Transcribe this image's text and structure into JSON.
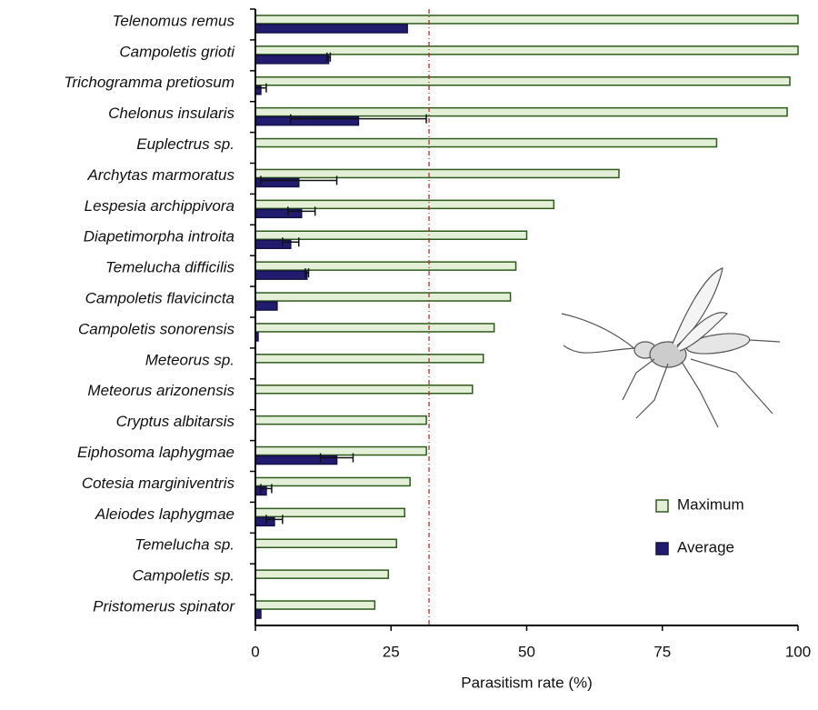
{
  "chart_data": {
    "type": "bar",
    "orientation": "horizontal",
    "x_label": "Parasitism rate (%)",
    "categories": [
      "Telenomus remus",
      "Campoletis grioti",
      "Trichogramma pretiosum",
      "Chelonus insularis",
      "Euplectrus sp.",
      "Archytas marmoratus",
      "Lespesia archippivora",
      "Diapetimorpha introita",
      "Temelucha difficilis",
      "Campoletis flavicincta",
      "Campoletis sonorensis",
      "Meteorus sp.",
      "Meteorus arizonensis",
      "Cryptus albitarsis",
      "Eiphosoma laphygmae",
      "Cotesia marginiventris",
      "Aleiodes laphygmae",
      "Temelucha sp.",
      "Campoletis sp.",
      "Pristomerus spinator"
    ],
    "series": [
      {
        "name": "Maximum",
        "color": "#e4efd8",
        "edge_color": "#2e5a1c",
        "values": [
          100,
          100,
          98.5,
          98,
          85,
          67,
          55,
          50,
          48,
          47,
          44,
          42,
          40,
          31.5,
          31.5,
          28.5,
          27.5,
          26,
          24.5,
          22
        ]
      },
      {
        "name": "Average",
        "color": "#221c6e",
        "edge_color": "#14104a",
        "values": [
          28,
          13.5,
          1,
          19,
          null,
          8,
          8.5,
          6.5,
          9.5,
          4,
          0.5,
          null,
          null,
          null,
          15,
          2,
          3.5,
          null,
          null,
          1
        ],
        "errors": [
          null,
          0.3,
          1,
          12.5,
          null,
          7,
          2.5,
          1.5,
          0.3,
          null,
          null,
          null,
          null,
          null,
          3,
          1,
          1.5,
          null,
          null,
          null
        ]
      }
    ],
    "reference_line": {
      "value": 32,
      "color": "#b22222"
    },
    "xlim": [
      0,
      100
    ],
    "xticks": [
      0,
      25,
      50,
      75,
      100
    ],
    "legend": "lower right"
  }
}
